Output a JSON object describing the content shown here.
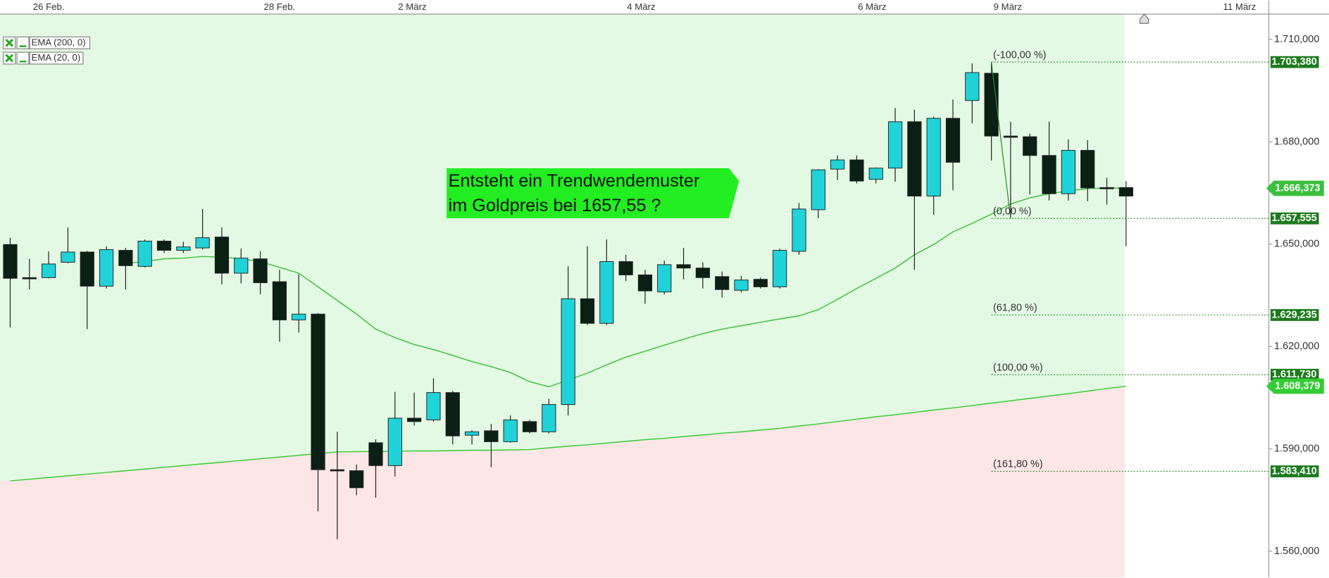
{
  "chart_data": {
    "type": "candlestick",
    "xticks": [
      {
        "value": 2,
        "label": "26 Feb."
      },
      {
        "value": 14,
        "label": "28 Feb."
      },
      {
        "value": 20.9,
        "label": "2 März"
      },
      {
        "value": 32.8,
        "label": "4 März"
      },
      {
        "value": 44.8,
        "label": "6 März"
      },
      {
        "value": 51.85,
        "label": "9 März"
      },
      {
        "value": 63.9,
        "label": "11 März"
      }
    ],
    "xlim": [
      -0.53,
      65.42
    ],
    "ylim": [
      1552.3,
      1717.45
    ],
    "yticks": [
      {
        "value": 1710,
        "label": "1.710,000"
      },
      {
        "value": 1680,
        "label": "1.680,000"
      },
      {
        "value": 1650,
        "label": "1.650,000"
      },
      {
        "value": 1620,
        "label": "1.620,000"
      },
      {
        "value": 1590,
        "label": "1.590,000"
      },
      {
        "value": 1560,
        "label": "1.560,000"
      }
    ],
    "up_color": "#1fd3d9",
    "down_color": "#0b1f14",
    "ohlc": {
      "open": [
        1649.9,
        1640.2,
        1640.2,
        1644.7,
        1647.7,
        1637.7,
        1648.2,
        1643.5,
        1650.9,
        1648.2,
        1648.9,
        1652.1,
        1641.5,
        1645.7,
        1639.0,
        1627.8,
        1629.5,
        1583.9,
        1583.6,
        1591.8,
        1585.1,
        1599.0,
        1598.5,
        1606.5,
        1594.0,
        1595.3,
        1592.1,
        1598.0,
        1595.0,
        1603.0,
        1634.0,
        1626.8,
        1644.9,
        1641.0,
        1636.0,
        1644.0,
        1643.0,
        1640.5,
        1636.5,
        1639.7,
        1637.5,
        1647.9,
        1660.1,
        1672.0,
        1674.7,
        1669.0,
        1672.3,
        1685.9,
        1664.1,
        1686.9,
        1692.1,
        1700.1,
        1681.7,
        1681.5,
        1676.0,
        1664.8,
        1677.5,
        1666.6,
        1666.6
      ],
      "high": [
        1651.9,
        1645.7,
        1647.9,
        1654.9,
        1648.0,
        1649.4,
        1648.9,
        1651.4,
        1651.4,
        1650.7,
        1660.3,
        1654.9,
        1648.7,
        1647.9,
        1642.5,
        1641.2,
        1629.8,
        1595.0,
        1585.4,
        1592.8,
        1606.7,
        1606.5,
        1610.7,
        1607.0,
        1595.5,
        1597.3,
        1599.8,
        1598.5,
        1604.7,
        1643.5,
        1649.4,
        1651.4,
        1646.9,
        1642.5,
        1645.2,
        1648.9,
        1644.7,
        1642.0,
        1640.7,
        1640.2,
        1648.7,
        1662.1,
        1672.0,
        1676.0,
        1676.0,
        1672.5,
        1689.9,
        1689.4,
        1687.4,
        1692.4,
        1703.0,
        1703.38,
        1685.9,
        1682.4,
        1685.9,
        1680.7,
        1680.5,
        1669.5,
        1668.5
      ],
      "low": [
        1625.6,
        1636.7,
        1640.0,
        1644.4,
        1625.1,
        1637.0,
        1636.7,
        1643.2,
        1647.4,
        1647.4,
        1648.4,
        1638.2,
        1638.5,
        1635.3,
        1621.4,
        1624.1,
        1571.7,
        1563.5,
        1576.4,
        1575.7,
        1581.9,
        1596.8,
        1598.0,
        1591.3,
        1591.3,
        1584.6,
        1591.8,
        1594.5,
        1594.5,
        1599.8,
        1626.3,
        1626.3,
        1639.2,
        1632.5,
        1635.3,
        1639.7,
        1637.0,
        1634.3,
        1635.8,
        1637.0,
        1637.0,
        1646.9,
        1657.6,
        1668.8,
        1667.8,
        1667.8,
        1668.3,
        1642.5,
        1658.6,
        1665.8,
        1685.4,
        1674.5,
        1657.555,
        1664.6,
        1662.8,
        1662.8,
        1662.6,
        1661.6,
        1649.4
      ],
      "close": [
        1640.0,
        1640.0,
        1644.2,
        1647.7,
        1637.7,
        1648.4,
        1643.7,
        1650.9,
        1648.2,
        1649.2,
        1651.9,
        1641.5,
        1645.9,
        1638.7,
        1627.8,
        1629.5,
        1583.9,
        1583.7,
        1578.6,
        1585.1,
        1599.0,
        1598.0,
        1606.5,
        1593.8,
        1595.0,
        1592.1,
        1598.5,
        1595.0,
        1603.0,
        1634.0,
        1626.8,
        1644.9,
        1641.0,
        1636.3,
        1644.0,
        1643.0,
        1640.2,
        1636.7,
        1639.5,
        1637.5,
        1648.2,
        1660.3,
        1671.8,
        1674.7,
        1668.5,
        1672.3,
        1685.9,
        1664.1,
        1686.9,
        1674.0,
        1700.3,
        1681.7,
        1681.5,
        1676.0,
        1664.8,
        1677.5,
        1666.5,
        1666.4,
        1664.1
      ]
    },
    "series": [
      {
        "name": "EMA (200, 0)",
        "color": "#33cc33",
        "values": [
          1580.6,
          1581.1,
          1581.6,
          1582.1,
          1582.6,
          1583.1,
          1583.6,
          1584.1,
          1584.6,
          1585.1,
          1585.6,
          1586.1,
          1586.6,
          1587.1,
          1587.6,
          1588.1,
          1588.6,
          1589.1,
          1589.2,
          1589.2,
          1589.3,
          1589.4,
          1589.4,
          1589.5,
          1589.6,
          1589.6,
          1589.7,
          1589.8,
          1590.3,
          1590.8,
          1591.2,
          1591.7,
          1592.2,
          1592.7,
          1593.1,
          1593.6,
          1594.1,
          1594.6,
          1595.0,
          1595.5,
          1596.0,
          1596.7,
          1597.3,
          1598.0,
          1598.7,
          1599.4,
          1600.0,
          1600.7,
          1601.4,
          1602.0,
          1602.7,
          1603.4,
          1604.1,
          1604.8,
          1605.5,
          1606.2,
          1606.9,
          1607.7,
          1608.379
        ],
        "value_labels": [
          null,
          null,
          null,
          null,
          null,
          null,
          null,
          null,
          null,
          null,
          null,
          null,
          null,
          null,
          null,
          null,
          null,
          null,
          null,
          null,
          null,
          null,
          null,
          null,
          null,
          null,
          null,
          null,
          null,
          null,
          null,
          null,
          null,
          null,
          null,
          null,
          null,
          null,
          null,
          null,
          null,
          null,
          null,
          null,
          null,
          null,
          null,
          null,
          null,
          null,
          null,
          null,
          null,
          null,
          null,
          null,
          null,
          null,
          "1.608,379"
        ]
      },
      {
        "name": "EMA (20, 0)",
        "color": "#3cbf3c",
        "values": [
          null,
          null,
          null,
          null,
          null,
          null,
          1644.4,
          1644.9,
          1645.7,
          1645.9,
          1646.4,
          1646.2,
          1645.7,
          1644.9,
          1643.2,
          1641.5,
          1637.5,
          1633.5,
          1629.5,
          1625.1,
          1622.6,
          1620.6,
          1619.1,
          1617.4,
          1615.6,
          1614.1,
          1612.4,
          1609.7,
          1608.2,
          1610.2,
          1612.2,
          1614.6,
          1616.9,
          1618.6,
          1620.4,
          1622.1,
          1623.8,
          1625.1,
          1626.1,
          1627.1,
          1628.1,
          1629.0,
          1630.8,
          1633.8,
          1637.0,
          1640.0,
          1643.0,
          1646.9,
          1649.9,
          1653.6,
          1656.1,
          1658.8,
          1661.8,
          1663.6,
          1664.8,
          1665.6,
          1666.3,
          1666.5,
          1666.373
        ],
        "value_labels": [
          null,
          null,
          null,
          null,
          null,
          null,
          null,
          null,
          null,
          null,
          null,
          null,
          null,
          null,
          null,
          null,
          null,
          null,
          null,
          null,
          null,
          null,
          null,
          null,
          null,
          null,
          null,
          null,
          null,
          null,
          null,
          null,
          null,
          null,
          null,
          null,
          null,
          null,
          null,
          null,
          null,
          null,
          null,
          null,
          null,
          null,
          null,
          null,
          null,
          null,
          null,
          null,
          null,
          null,
          null,
          null,
          null,
          null,
          "1.666,373"
        ]
      }
    ],
    "fibonacci": {
      "color": "#2a8a2a",
      "labels": [
        "(-100,00 %)",
        "(0,00 %)",
        "(61,80 %)",
        "(100,00 %)",
        "(161,80 %)"
      ],
      "values": [
        1703.38,
        1657.555,
        1629.235,
        1611.73,
        1583.41
      ],
      "value_labels": [
        "1.703,380",
        "1.657,555",
        "1.629,235",
        "1.611,730",
        "1.583,410"
      ]
    },
    "annotation": [
      "Entsteht ein Trendwendemuster",
      "im Goldpreis bei 1657,55 ?"
    ]
  }
}
